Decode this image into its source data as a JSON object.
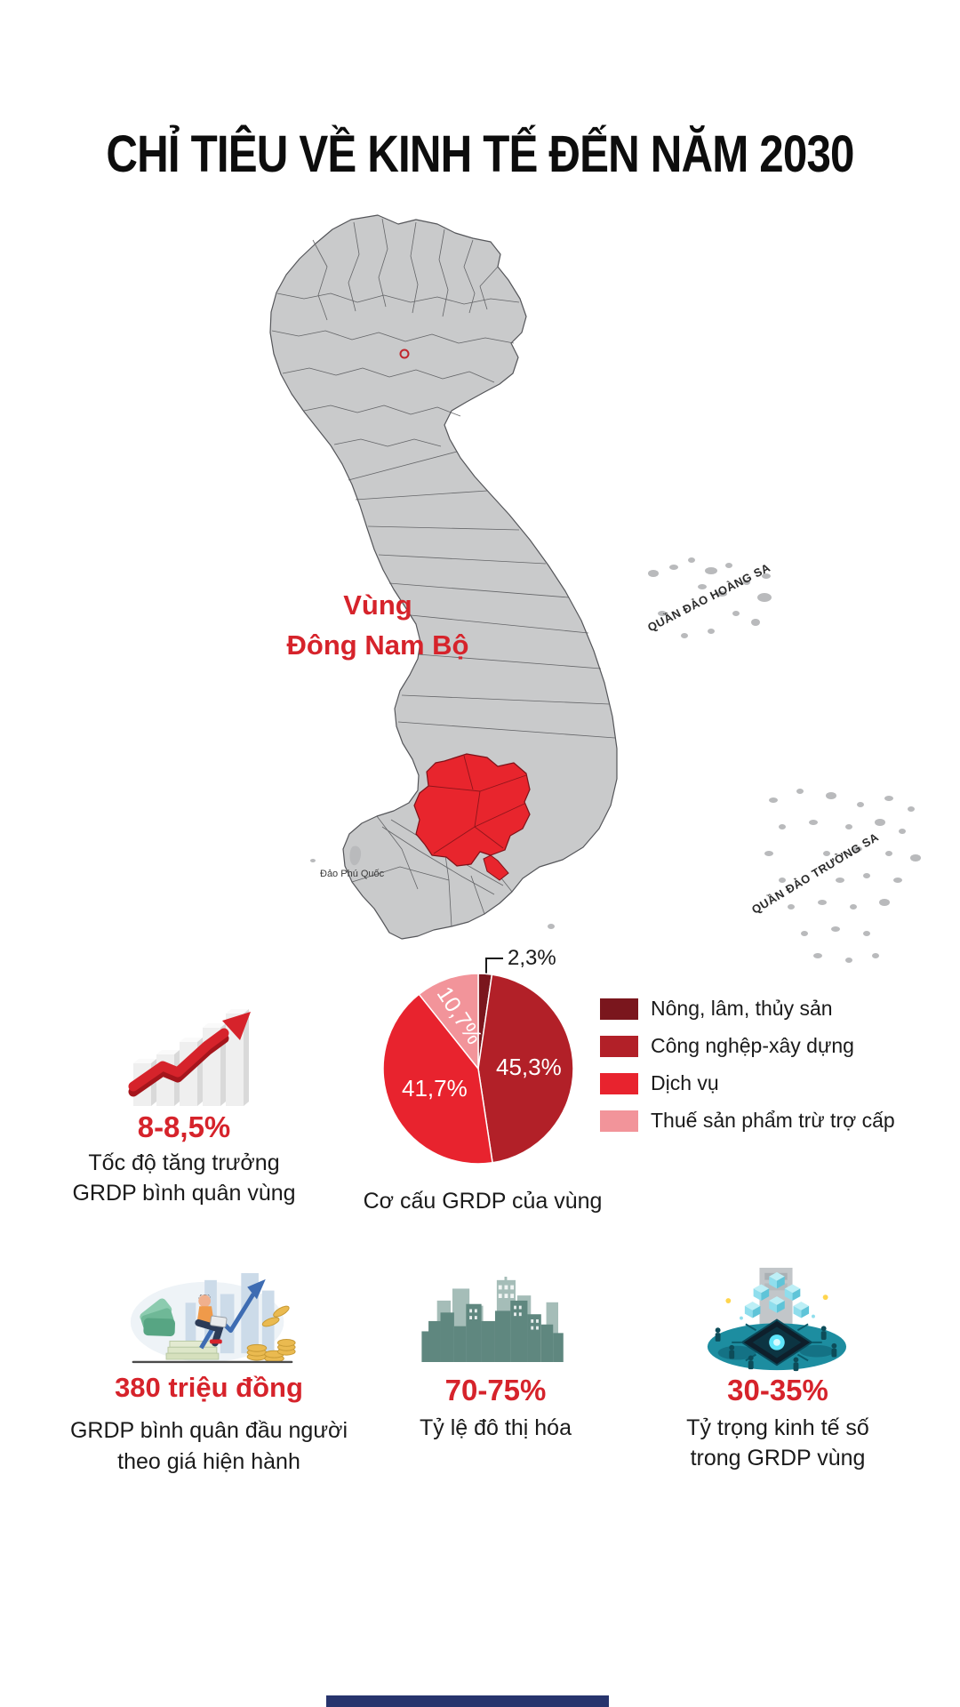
{
  "title": "CHỈ TIÊU VỀ KINH TẾ ĐẾN NĂM 2030",
  "colors": {
    "accent_red": "#d6232b",
    "map_gray": "#c9cacb",
    "map_highlight": "#e8252d",
    "footer_navy": "#27346d"
  },
  "map": {
    "region_label": [
      "Vùng",
      "Đông Nam Bộ"
    ],
    "labels": {
      "hoang_sa": "QUẦN ĐẢO HOÀNG SA",
      "truong_sa": "QUẦN ĐẢO TRƯỜNG SA",
      "phu_quoc": "Đảo Phú Quốc"
    }
  },
  "growth": {
    "value": "8-8,5%",
    "label_line1": "Tốc độ tăng trưởng",
    "label_line2": "GRDP bình quân vùng"
  },
  "chart_data": {
    "type": "pie",
    "title": "Cơ cấu GRDP của vùng",
    "start_angle_deg": 0,
    "direction": "clockwise",
    "legend_position": "right",
    "slices": [
      {
        "label": "Nông, lâm, thủy sản",
        "value": 2.3,
        "display": "2,3%",
        "color": "#7a161d"
      },
      {
        "label": "Công nghệp-xây dựng",
        "value": 45.3,
        "display": "45,3%",
        "color": "#b22028"
      },
      {
        "label": "Dịch vụ",
        "value": 41.7,
        "display": "41,7%",
        "color": "#e8232e"
      },
      {
        "label": "Thuế sản phẩm trừ trợ cấp",
        "value": 10.7,
        "display": "10,7%",
        "color": "#f2949a"
      }
    ]
  },
  "stats": [
    {
      "value": "380 triệu đồng",
      "label_lines": [
        "GRDP bình quân đầu người",
        "theo giá hiện hành"
      ]
    },
    {
      "value": "70-75%",
      "label_lines": [
        "Tỷ lệ đô thị hóa"
      ]
    },
    {
      "value": "30-35%",
      "label_lines": [
        "Tỷ trọng kinh tế số",
        "trong GRDP vùng"
      ]
    }
  ]
}
